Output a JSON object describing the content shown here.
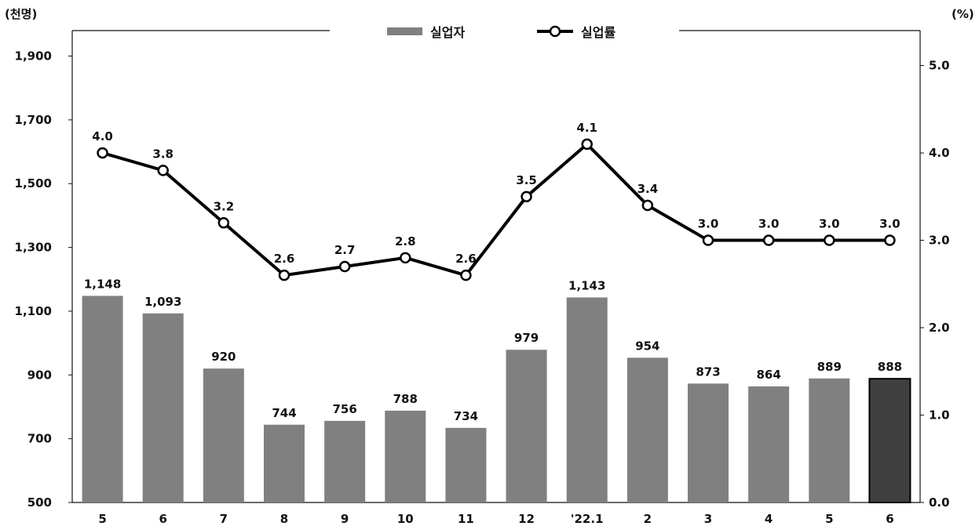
{
  "chart_data": {
    "type": "bar+line",
    "categories": [
      "5",
      "6",
      "7",
      "8",
      "9",
      "10",
      "11",
      "12",
      "'22.1",
      "2",
      "3",
      "4",
      "5",
      "6"
    ],
    "series": [
      {
        "name": "실업자",
        "type": "bar",
        "axis": "left",
        "values": [
          1148,
          1093,
          920,
          744,
          756,
          788,
          734,
          979,
          1143,
          954,
          873,
          864,
          889,
          888
        ],
        "labels": [
          "1,148",
          "1,093",
          "920",
          "744",
          "756",
          "788",
          "734",
          "979",
          "1,143",
          "954",
          "873",
          "864",
          "889",
          "888"
        ],
        "color": "#808080",
        "highlight_color": "#404040",
        "highlight_index": 13
      },
      {
        "name": "실업률",
        "type": "line",
        "axis": "right",
        "values": [
          4.0,
          3.8,
          3.2,
          2.6,
          2.7,
          2.8,
          2.6,
          3.5,
          4.1,
          3.4,
          3.0,
          3.0,
          3.0,
          3.0
        ],
        "labels": [
          "4.0",
          "3.8",
          "3.2",
          "2.6",
          "2.7",
          "2.8",
          "2.6",
          "3.5",
          "4.1",
          "3.4",
          "3.0",
          "3.0",
          "3.0",
          "3.0"
        ],
        "color": "#000000"
      }
    ],
    "y_left": {
      "unit_label": "(천명)",
      "range": [
        500,
        1980
      ],
      "ticks": [
        500,
        700,
        900,
        1100,
        1300,
        1500,
        1700,
        1900
      ],
      "tick_labels": [
        "500",
        "700",
        "900",
        "1,100",
        "1,300",
        "1,500",
        "1,700",
        "1,900"
      ]
    },
    "y_right": {
      "unit_label": "(%)",
      "range": [
        0,
        5.4
      ],
      "ticks": [
        0,
        1,
        2,
        3,
        4,
        5
      ],
      "tick_labels": [
        "0.0",
        "1.0",
        "2.0",
        "3.0",
        "4.0",
        "5.0"
      ]
    },
    "legend": {
      "position": "top-center",
      "bar_label": "실업자",
      "line_label": "실업률"
    },
    "grid": false
  }
}
